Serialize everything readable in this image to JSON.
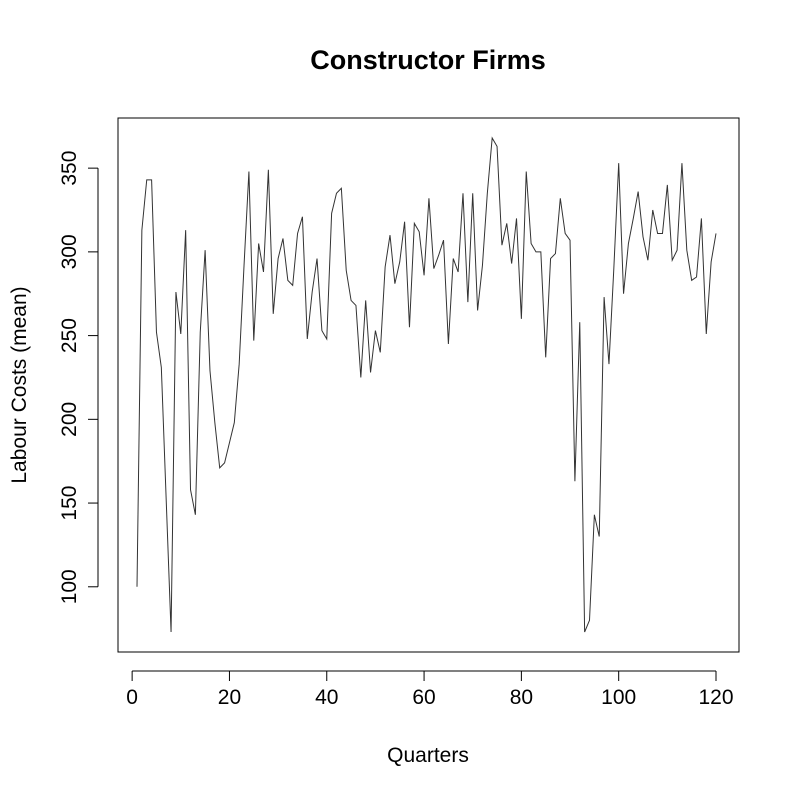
{
  "chart_data": {
    "type": "line",
    "title": "Constructor Firms",
    "xlabel": "Quarters",
    "ylabel": "Labour Costs (mean)",
    "xlim": [
      1,
      120
    ],
    "ylim": [
      73,
      368
    ],
    "xticks": [
      0,
      20,
      40,
      60,
      80,
      100,
      120
    ],
    "yticks": [
      100,
      150,
      200,
      250,
      300,
      350
    ],
    "grid": false,
    "series": [
      {
        "x": [
          1,
          2,
          3,
          4,
          5,
          6,
          7,
          8,
          9,
          10,
          11,
          12,
          13,
          14,
          15,
          16,
          17,
          18,
          19,
          20,
          21,
          22,
          23,
          24,
          25,
          26,
          27,
          28,
          29,
          30,
          31,
          32,
          33,
          34,
          35,
          36,
          37,
          38,
          39,
          40,
          41,
          42,
          43,
          44,
          45,
          46,
          47,
          48,
          49,
          50,
          51,
          52,
          53,
          54,
          55,
          56,
          57,
          58,
          59,
          60,
          61,
          62,
          63,
          64,
          65,
          66,
          67,
          68,
          69,
          70,
          71,
          72,
          73,
          74,
          75,
          76,
          77,
          78,
          79,
          80,
          81,
          82,
          83,
          84,
          85,
          86,
          87,
          88,
          89,
          90,
          91,
          92,
          93,
          94,
          95,
          96,
          97,
          98,
          99,
          100,
          101,
          102,
          103,
          104,
          105,
          106,
          107,
          108,
          109,
          110,
          111,
          112,
          113,
          114,
          115,
          116,
          117,
          118,
          119,
          120
        ],
        "values": [
          100,
          313,
          343,
          343,
          252,
          231,
          152,
          73,
          276,
          251,
          313,
          158,
          143,
          252,
          301,
          229,
          198,
          171,
          174,
          186,
          198,
          233,
          292,
          348,
          247,
          305,
          288,
          349,
          263,
          296,
          308,
          283,
          280,
          311,
          321,
          248,
          276,
          296,
          253,
          248,
          323,
          335,
          338,
          289,
          271,
          268,
          225,
          271,
          228,
          253,
          240,
          291,
          310,
          281,
          294,
          318,
          255,
          317,
          312,
          286,
          332,
          290,
          298,
          307,
          245,
          296,
          288,
          335,
          270,
          335,
          265,
          292,
          335,
          368,
          363,
          304,
          317,
          293,
          320,
          260,
          348,
          305,
          300,
          300,
          237,
          296,
          299,
          332,
          311,
          307,
          163,
          258,
          73,
          80,
          143,
          130,
          273,
          233,
          290,
          353,
          275,
          305,
          320,
          336,
          309,
          295,
          325,
          311,
          311,
          340,
          295,
          301,
          353,
          301,
          283,
          285,
          320,
          251,
          294,
          311
        ]
      }
    ]
  }
}
